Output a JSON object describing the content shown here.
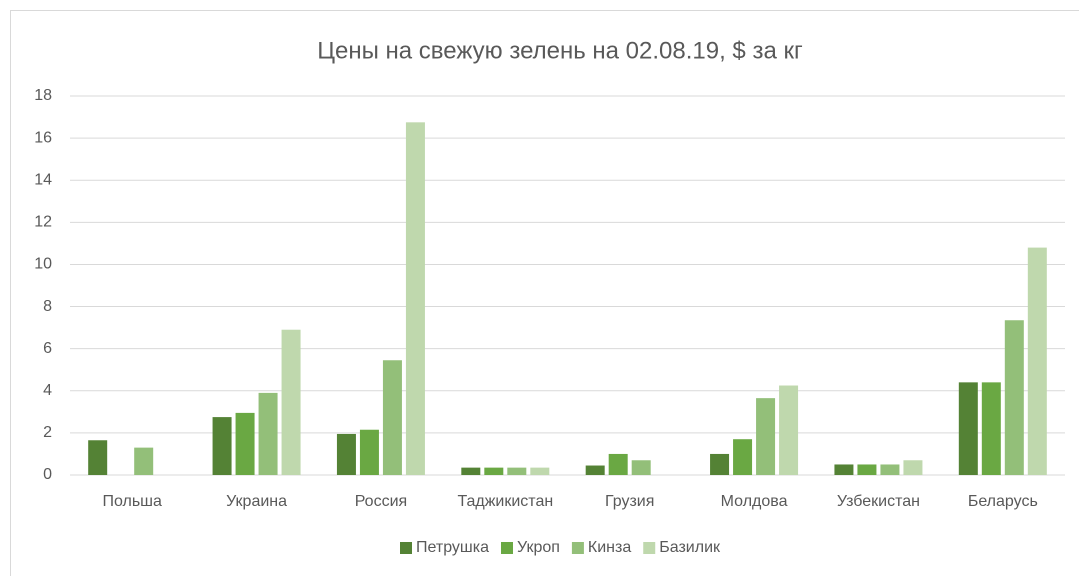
{
  "chart_data": {
    "type": "bar",
    "title": "Цены на свежую зелень на 02.08.19, $ за кг",
    "categories": [
      "Польша",
      "Украина",
      "Россия",
      "Таджикистан",
      "Грузия",
      "Молдова",
      "Узбекистан",
      "Беларусь"
    ],
    "series": [
      {
        "name": "Петрушка",
        "color": "#548235",
        "values": [
          1.65,
          2.75,
          1.95,
          0.35,
          0.45,
          1.0,
          0.5,
          4.4
        ]
      },
      {
        "name": "Укроп",
        "color": "#6aa843",
        "values": [
          null,
          2.95,
          2.15,
          0.35,
          1.0,
          1.7,
          0.5,
          4.4
        ]
      },
      {
        "name": "Кинза",
        "color": "#93bf79",
        "values": [
          1.3,
          3.9,
          5.45,
          0.35,
          0.7,
          3.65,
          0.5,
          7.35
        ]
      },
      {
        "name": "Базилик",
        "color": "#bfd8ad",
        "values": [
          null,
          6.9,
          16.75,
          0.35,
          null,
          4.25,
          0.7,
          10.8
        ]
      }
    ],
    "ylim": [
      0,
      18
    ],
    "yticks": [
      0,
      2,
      4,
      6,
      8,
      10,
      12,
      14,
      16,
      18
    ],
    "grid": true,
    "legend": "bottom"
  }
}
